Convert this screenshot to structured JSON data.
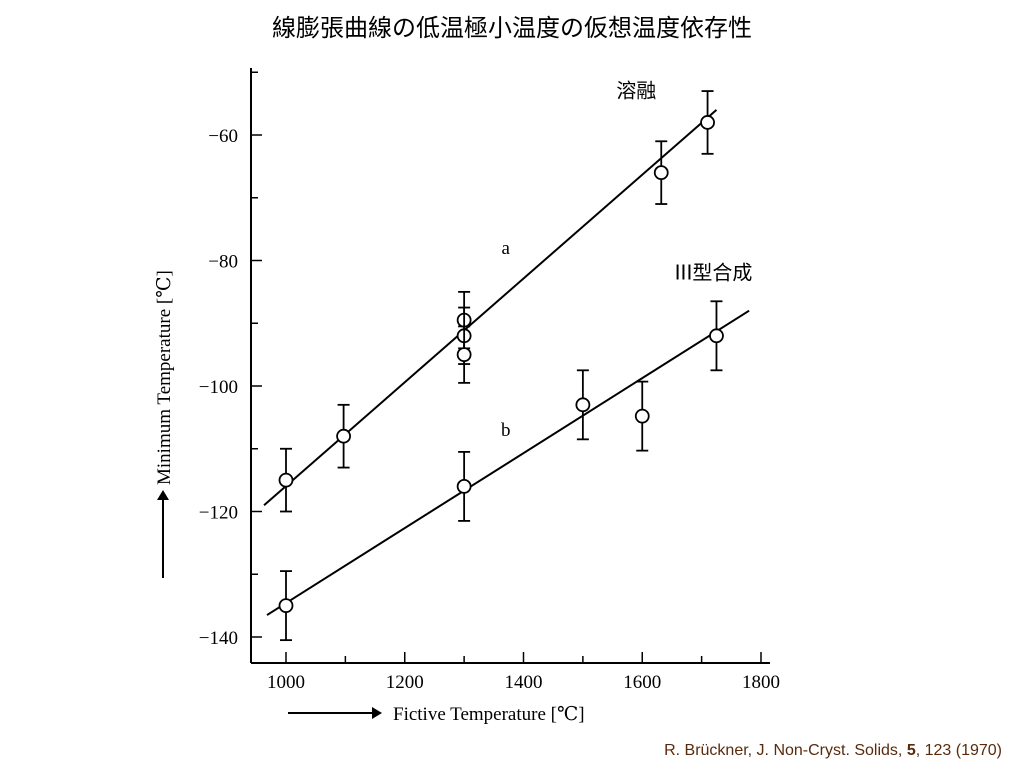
{
  "slide": {
    "title": "線膨張曲線の低温極小温度の仮想温度依存性",
    "citation": {
      "authors": "R. Brückner, J. Non-Cryst. Solids, ",
      "volume": "5",
      "pages": ", 123 (1970)"
    }
  },
  "chart_data": {
    "type": "scatter",
    "title": "",
    "xlabel": "Fictive Temperature [℃]",
    "ylabel": "Minimum Temperature [℃]",
    "xlim": [
      945,
      1800
    ],
    "ylim": [
      -146,
      -50
    ],
    "xticks": [
      1000,
      1200,
      1400,
      1600,
      1800
    ],
    "yticks": [
      -60,
      -80,
      -100,
      -120,
      -140
    ],
    "xticklabels": [
      "1000",
      "1200",
      "1400",
      "1600",
      "1800"
    ],
    "yticklabels": [
      "−60",
      "−80",
      "−100",
      "−120",
      "−140"
    ],
    "grid": false,
    "annotations": [
      {
        "text": "溶融",
        "x": 1590,
        "y": -54
      },
      {
        "text": "a",
        "x": 1370,
        "y": -79
      },
      {
        "text": "III型合成",
        "x": 1720,
        "y": -83
      },
      {
        "text": "b",
        "x": 1370,
        "y": -108
      }
    ],
    "series": [
      {
        "label": "a",
        "x": [
          1000,
          1097,
          1300,
          1300,
          1300,
          1632,
          1710
        ],
        "y": [
          -115,
          -108,
          -89.5,
          -92,
          -95,
          -66,
          -58
        ],
        "yerr": [
          5,
          5,
          4.5,
          4.5,
          4.5,
          5,
          5
        ],
        "fit": {
          "x": [
            963,
            1725
          ],
          "y": [
            -119,
            -56
          ]
        }
      },
      {
        "label": "b",
        "x": [
          1000,
          1300,
          1500,
          1600,
          1725
        ],
        "y": [
          -135,
          -116,
          -103,
          -104.8,
          -92
        ],
        "yerr": [
          5.5,
          5.5,
          5.5,
          5.5,
          5.5
        ],
        "fit": {
          "x": [
            968,
            1780
          ],
          "y": [
            -136.5,
            -88
          ]
        }
      }
    ]
  }
}
